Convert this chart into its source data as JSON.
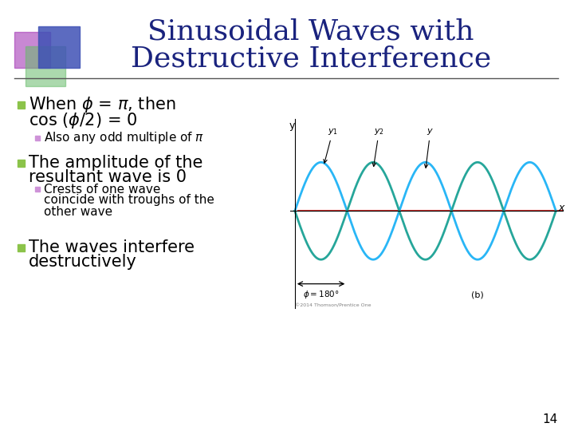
{
  "title_line1": "Sinusoidal Waves with",
  "title_line2": "Destructive Interference",
  "title_color": "#1a237e",
  "title_fontsize": 26,
  "bg_color": "#ffffff",
  "bullet_color": "#8bc34a",
  "sub_bullet_color": "#ce93d8",
  "text_color": "#000000",
  "page_number": "14",
  "wave_color1": "#29b6f6",
  "wave_color2": "#26a69a",
  "resultant_color": "#e53935",
  "separator_color": "#555555",
  "accent_blue": "#3f51b5",
  "accent_purple": "#9c27b0",
  "accent_green": "#66bb6a"
}
